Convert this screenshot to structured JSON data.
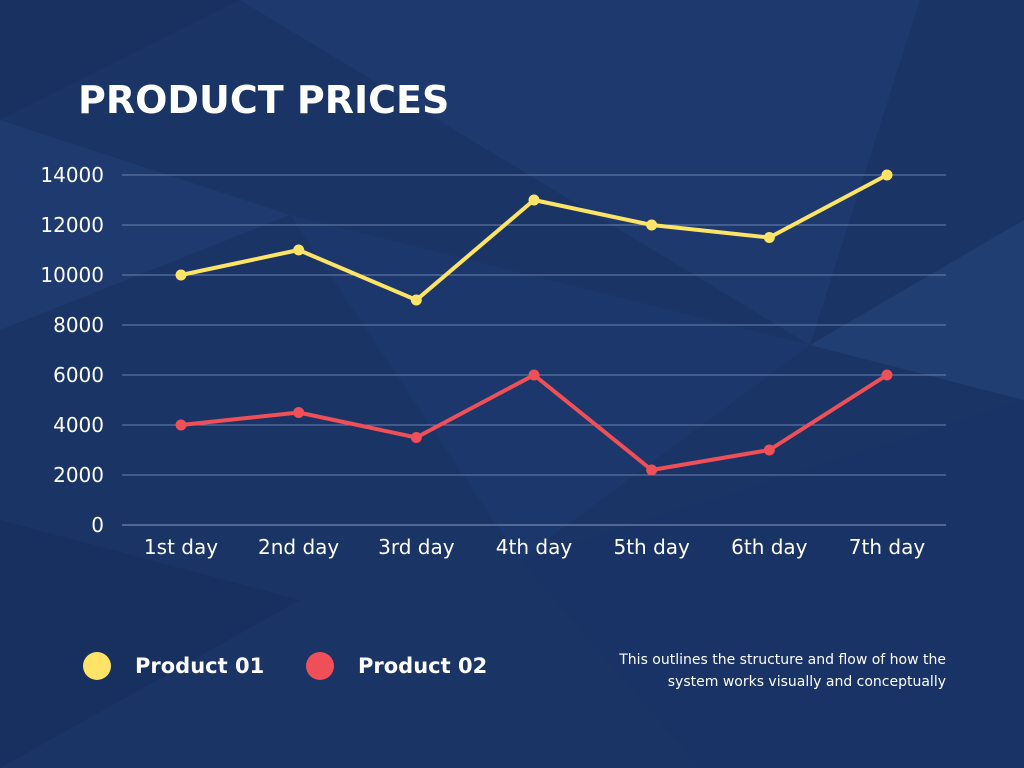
{
  "chart_data": {
    "type": "line",
    "title": "PRODUCT PRICES",
    "categories": [
      "1st day",
      "2nd day",
      "3rd day",
      "4th day",
      "5th day",
      "6th day",
      "7th day"
    ],
    "ylim": [
      0,
      14000
    ],
    "yticks": [
      0,
      2000,
      4000,
      6000,
      8000,
      10000,
      12000,
      14000
    ],
    "grid": true,
    "legend_position": "bottom-left",
    "series": [
      {
        "name": "Product 01",
        "color": "#fde467",
        "values": [
          10000,
          11000,
          9000,
          13000,
          12000,
          11500,
          14000
        ]
      },
      {
        "name": "Product 02",
        "color": "#ef4f57",
        "values": [
          4000,
          4500,
          3500,
          6000,
          2200,
          3000,
          6000
        ]
      }
    ]
  },
  "note": "This outlines the structure and flow of how the system works visually and conceptually",
  "colors": {
    "background": "#1b3466",
    "text": "#ffffff",
    "grid": "#6b82ad"
  }
}
